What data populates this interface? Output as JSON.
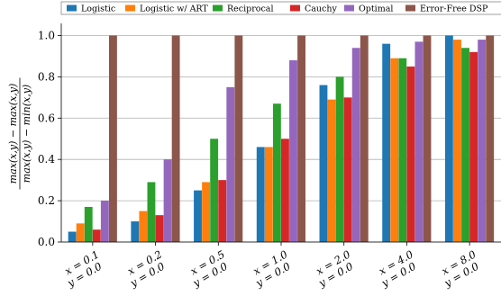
{
  "chart_data": {
    "type": "bar",
    "categories": [
      [
        "x = 0.1",
        "y = 0.0"
      ],
      [
        "x = 0.2",
        "y = 0.0"
      ],
      [
        "x = 0.5",
        "y = 0.0"
      ],
      [
        "x = 1.0",
        "y = 0.0"
      ],
      [
        "x = 2.0",
        "y = 0.0"
      ],
      [
        "x = 4.0",
        "y = 0.0"
      ],
      [
        "x = 8.0",
        "y = 0.0"
      ]
    ],
    "series": [
      {
        "name": "Logistic",
        "color": "#1f77b4",
        "values": [
          0.05,
          0.1,
          0.25,
          0.46,
          0.76,
          0.96,
          1.0
        ]
      },
      {
        "name": "Logistic w/ ART",
        "color": "#ff7f0e",
        "values": [
          0.09,
          0.15,
          0.29,
          0.46,
          0.69,
          0.89,
          0.98
        ]
      },
      {
        "name": "Reciprocal",
        "color": "#2ca02c",
        "values": [
          0.17,
          0.29,
          0.5,
          0.67,
          0.8,
          0.89,
          0.94
        ]
      },
      {
        "name": "Cauchy",
        "color": "#d62728",
        "values": [
          0.06,
          0.13,
          0.3,
          0.5,
          0.7,
          0.85,
          0.92
        ]
      },
      {
        "name": "Optimal",
        "color": "#9467bd",
        "values": [
          0.2,
          0.4,
          0.75,
          0.88,
          0.94,
          0.97,
          0.98
        ]
      },
      {
        "name": "Error-Free DSP",
        "color": "#8c564b",
        "values": [
          1.0,
          1.0,
          1.0,
          1.0,
          1.0,
          1.0,
          1.0
        ]
      }
    ],
    "ylabel": [
      "max(x,y) − max(x,y)",
      "max(x,y) − min(x,y)"
    ],
    "ylim": [
      0.0,
      1.05
    ],
    "yticks": [
      "0.0",
      "0.2",
      "0.4",
      "0.6",
      "0.8",
      "1.0"
    ],
    "ytick_values": [
      0.0,
      0.2,
      0.4,
      0.6,
      0.8,
      1.0
    ],
    "grid": true,
    "legend_position": "top"
  }
}
